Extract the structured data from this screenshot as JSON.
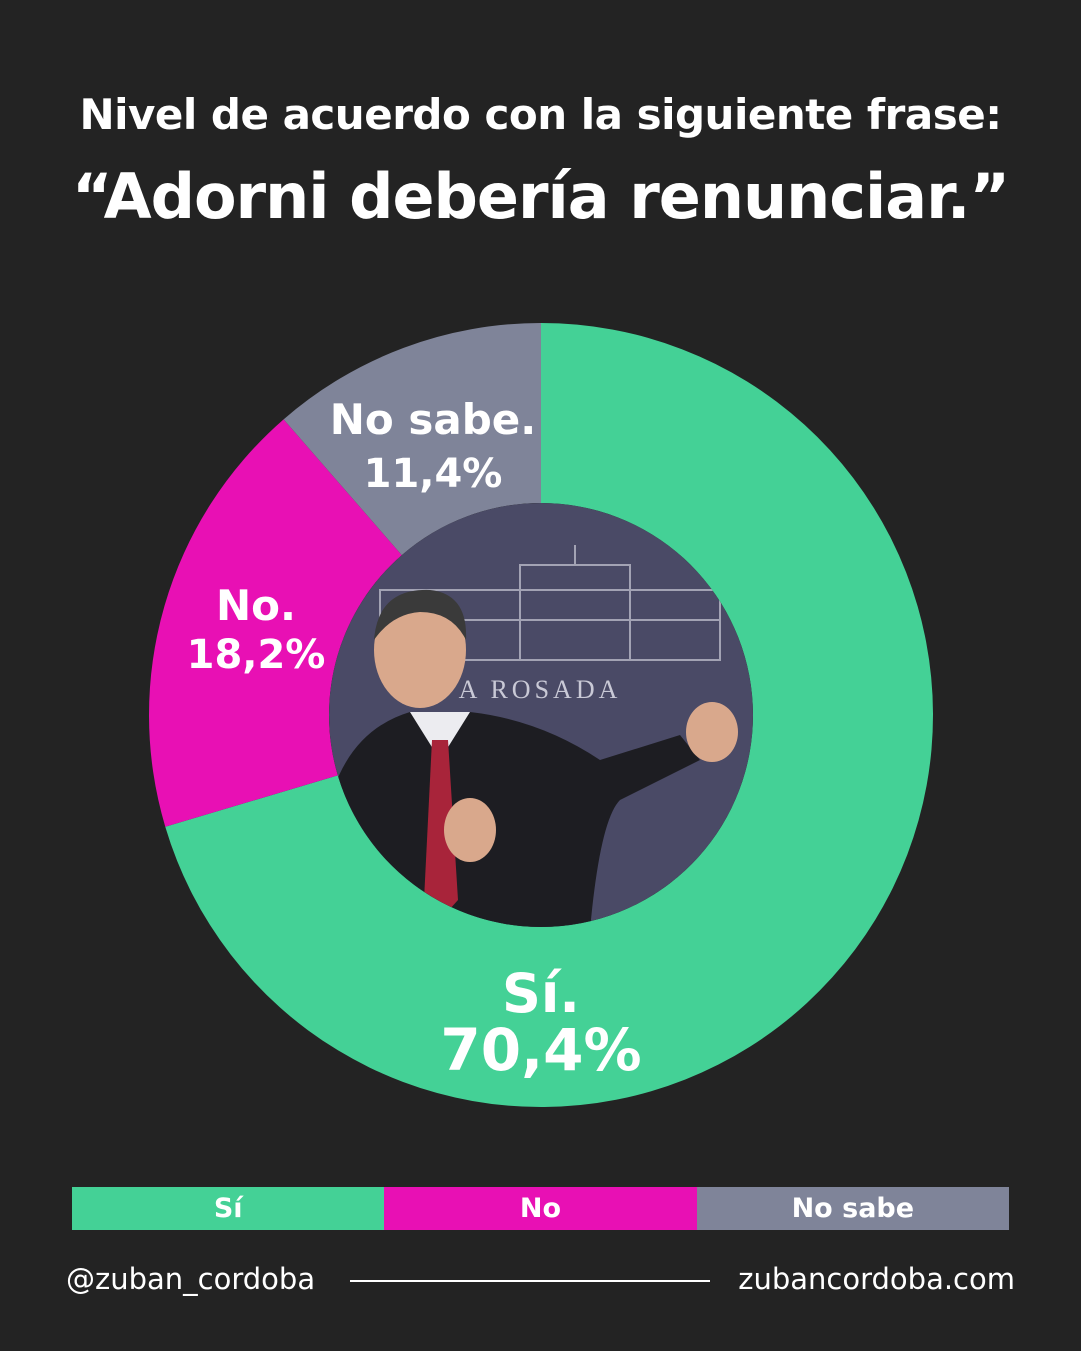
{
  "title": {
    "line1": "Nivel de acuerdo con la siguiente frase:",
    "line2": "“Adorni debería renunciar.”"
  },
  "chart_data": {
    "type": "pie",
    "categories": [
      "Sí",
      "No",
      "No sabe"
    ],
    "values": [
      70.4,
      18.2,
      11.4
    ],
    "slice_labels": [
      {
        "name": "Sí.",
        "value": "70,4%"
      },
      {
        "name": "No.",
        "value": "18,2%"
      },
      {
        "name": "No sabe.",
        "value": "11,4%"
      }
    ],
    "colors": [
      "#44D196",
      "#E810B4",
      "#7F8499"
    ],
    "legend": [
      "Sí",
      "No",
      "No sabe"
    ],
    "legend_position": "bottom"
  },
  "footer": {
    "handle": "@zuban_cordoba",
    "website": "zubancordoba.com"
  },
  "colors": {
    "background": "#232323",
    "photo_background": "#4a4a66"
  }
}
